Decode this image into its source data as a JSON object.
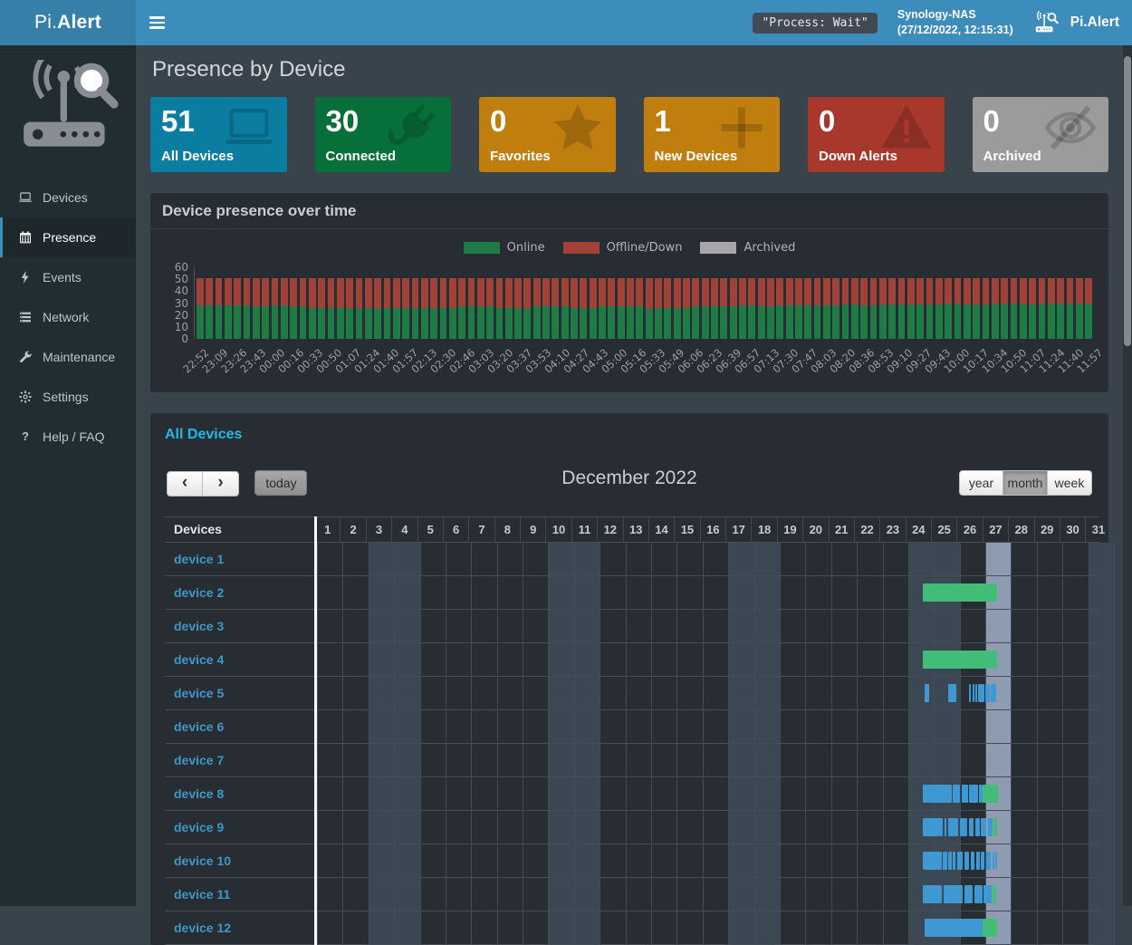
{
  "header": {
    "brand_prefix": "Pi.",
    "brand_suffix": "Alert",
    "process_badge": "\"Process: Wait\"",
    "host_name": "Synology-NAS",
    "host_time": "(27/12/2022, 12:15:31)",
    "app_name": "Pi.Alert"
  },
  "sidebar": {
    "items": [
      {
        "label": "Devices",
        "icon": "laptop-icon",
        "active": false
      },
      {
        "label": "Presence",
        "icon": "calendar-icon",
        "active": true
      },
      {
        "label": "Events",
        "icon": "bolt-icon",
        "active": false
      },
      {
        "label": "Network",
        "icon": "network-icon",
        "active": false
      },
      {
        "label": "Maintenance",
        "icon": "wrench-icon",
        "active": false
      },
      {
        "label": "Settings",
        "icon": "gear-icon",
        "active": false
      },
      {
        "label": "Help / FAQ",
        "icon": "question-icon",
        "active": false
      }
    ]
  },
  "page": {
    "title": "Presence by Device"
  },
  "info_boxes": [
    {
      "value": "51",
      "label": "All Devices",
      "color": "#0b7da0",
      "icon": "laptop-icon"
    },
    {
      "value": "30",
      "label": "Connected",
      "color": "#07703a",
      "icon": "plug-icon"
    },
    {
      "value": "0",
      "label": "Favorites",
      "color": "#c07e0f",
      "icon": "star-icon"
    },
    {
      "value": "1",
      "label": "New Devices",
      "color": "#c07e0f",
      "icon": "plus-icon"
    },
    {
      "value": "0",
      "label": "Down Alerts",
      "color": "#a8382c",
      "icon": "warning-icon"
    },
    {
      "value": "0",
      "label": "Archived",
      "color": "#9b9b9b",
      "icon": "eye-slash-icon"
    }
  ],
  "chart_panel": {
    "title": "Device presence over time"
  },
  "chart_data": {
    "type": "bar",
    "stacked": true,
    "title": "Device presence over time",
    "ylim": [
      0,
      60
    ],
    "y_ticks": [
      60,
      50,
      40,
      30,
      20,
      10,
      0
    ],
    "label_every_n_bars": 2,
    "legend_position": "top-center",
    "x_labels": [
      "22:52",
      "23:09",
      "23:26",
      "23:43",
      "00:00",
      "00:16",
      "00:33",
      "00:50",
      "01:07",
      "01:24",
      "01:40",
      "01:57",
      "02:13",
      "02:30",
      "02:46",
      "03:03",
      "03:20",
      "03:37",
      "03:53",
      "04:10",
      "04:27",
      "04:43",
      "05:00",
      "05:16",
      "05:33",
      "05:49",
      "06:06",
      "06:23",
      "06:39",
      "06:57",
      "07:13",
      "07:30",
      "07:47",
      "08:03",
      "08:20",
      "08:36",
      "08:53",
      "09:10",
      "09:27",
      "09:43",
      "10:00",
      "10:17",
      "10:34",
      "10:50",
      "11:07",
      "11:24",
      "11:40",
      "11:57"
    ],
    "series": [
      {
        "name": "Online",
        "color": "#1e7b46",
        "values": [
          28,
          28,
          28,
          28,
          28,
          28,
          27,
          27,
          28,
          28,
          27,
          27,
          26,
          26,
          26,
          26,
          26,
          26,
          26,
          26,
          26,
          26,
          26,
          26,
          26,
          26,
          26,
          26,
          27,
          27,
          27,
          27,
          26,
          26,
          26,
          26,
          27,
          27,
          27,
          27,
          26,
          26,
          26,
          27,
          27,
          27,
          27,
          27,
          25,
          26,
          26,
          26,
          26,
          27,
          27,
          27,
          27,
          27,
          28,
          28,
          27,
          27,
          28,
          28,
          28,
          28,
          28,
          28,
          28,
          29,
          29,
          28,
          28,
          29,
          29,
          29,
          29,
          29,
          29,
          29,
          30,
          30,
          29,
          29,
          29,
          30,
          30,
          30,
          30,
          29,
          30,
          30,
          30,
          30,
          30,
          30
        ]
      },
      {
        "name": "Offline/Down",
        "color": "#a04238",
        "values": [
          23,
          23,
          23,
          23,
          23,
          23,
          24,
          24,
          23,
          23,
          24,
          24,
          25,
          25,
          25,
          25,
          25,
          25,
          25,
          25,
          25,
          25,
          25,
          25,
          25,
          25,
          25,
          25,
          24,
          24,
          24,
          24,
          25,
          25,
          25,
          25,
          24,
          24,
          24,
          24,
          25,
          25,
          25,
          24,
          24,
          24,
          24,
          24,
          26,
          25,
          25,
          25,
          25,
          24,
          24,
          24,
          24,
          24,
          23,
          23,
          24,
          24,
          23,
          23,
          23,
          23,
          23,
          23,
          23,
          22,
          22,
          23,
          23,
          22,
          22,
          22,
          22,
          22,
          22,
          22,
          21,
          21,
          22,
          22,
          22,
          21,
          21,
          21,
          21,
          22,
          21,
          21,
          21,
          21,
          21,
          21
        ]
      },
      {
        "name": "Archived",
        "color": "#a7a7a7",
        "constant_value": 0
      }
    ]
  },
  "calendar": {
    "section_title": "All Devices",
    "toolbar": {
      "prev": "‹",
      "next": "›",
      "today": "today",
      "title": "December 2022",
      "views": [
        {
          "label": "year",
          "active": false
        },
        {
          "label": "month",
          "active": true
        },
        {
          "label": "week",
          "active": false
        }
      ]
    },
    "table": {
      "devices_header": "Devices",
      "days": [
        1,
        2,
        3,
        4,
        5,
        6,
        7,
        8,
        9,
        10,
        11,
        12,
        13,
        14,
        15,
        16,
        17,
        18,
        19,
        20,
        21,
        22,
        23,
        24,
        25,
        26,
        27,
        28,
        29,
        30,
        31
      ],
      "weekend_days": [
        3,
        4,
        10,
        11,
        17,
        18,
        24,
        25,
        31
      ],
      "today_day": 27,
      "colors": {
        "weekend_bg": "#3c4754",
        "today_bg": "#8e9bb1",
        "present_blue": "#3e99d2",
        "present_now_green": "#41bd78"
      }
    },
    "devices": [
      {
        "name": "device 1",
        "segments": []
      },
      {
        "name": "device 2",
        "segments": [
          {
            "c": "green",
            "f": 24.55,
            "t": 27.45
          }
        ]
      },
      {
        "name": "device 3",
        "segments": []
      },
      {
        "name": "device 4",
        "segments": [
          {
            "c": "green",
            "f": 24.55,
            "t": 27.45
          }
        ]
      },
      {
        "name": "device 5",
        "segments": [
          {
            "c": "blue",
            "f": 24.62,
            "t": 24.82
          },
          {
            "c": "blue",
            "f": 25.55,
            "t": 25.88
          },
          {
            "c": "blue",
            "f": 26.35,
            "t": 26.45
          },
          {
            "c": "blue",
            "f": 26.5,
            "t": 26.58
          },
          {
            "c": "blue",
            "f": 26.62,
            "t": 26.68
          },
          {
            "c": "blue",
            "f": 26.72,
            "t": 26.95
          },
          {
            "c": "blue",
            "f": 27.0,
            "t": 27.18
          },
          {
            "c": "blue",
            "f": 27.22,
            "t": 27.42
          }
        ]
      },
      {
        "name": "device 6",
        "segments": []
      },
      {
        "name": "device 7",
        "segments": []
      },
      {
        "name": "device 8",
        "segments": [
          {
            "c": "blue",
            "f": 24.55,
            "t": 25.68
          },
          {
            "c": "blue",
            "f": 25.73,
            "t": 26.02
          },
          {
            "c": "blue",
            "f": 26.07,
            "t": 26.32
          },
          {
            "c": "blue",
            "f": 26.37,
            "t": 26.7
          },
          {
            "c": "blue",
            "f": 26.74,
            "t": 26.88
          },
          {
            "c": "green",
            "f": 26.88,
            "t": 27.48
          }
        ]
      },
      {
        "name": "device 9",
        "segments": [
          {
            "c": "blue",
            "f": 24.55,
            "t": 25.35
          },
          {
            "c": "blue",
            "f": 25.4,
            "t": 25.5
          },
          {
            "c": "blue",
            "f": 25.55,
            "t": 25.95
          },
          {
            "c": "blue",
            "f": 26.0,
            "t": 26.3
          },
          {
            "c": "blue",
            "f": 26.35,
            "t": 26.55
          },
          {
            "c": "blue",
            "f": 26.6,
            "t": 26.78
          },
          {
            "c": "blue",
            "f": 26.82,
            "t": 27.05
          },
          {
            "c": "blue",
            "f": 27.1,
            "t": 27.28
          },
          {
            "c": "green",
            "f": 27.3,
            "t": 27.44
          }
        ]
      },
      {
        "name": "device 10",
        "segments": [
          {
            "c": "blue",
            "f": 24.55,
            "t": 25.3
          },
          {
            "c": "blue",
            "f": 25.35,
            "t": 25.52
          },
          {
            "c": "blue",
            "f": 25.57,
            "t": 25.68
          },
          {
            "c": "blue",
            "f": 25.73,
            "t": 25.85
          },
          {
            "c": "blue",
            "f": 25.9,
            "t": 26.12
          },
          {
            "c": "blue",
            "f": 26.17,
            "t": 26.38
          },
          {
            "c": "blue",
            "f": 26.43,
            "t": 26.58
          },
          {
            "c": "blue",
            "f": 26.63,
            "t": 26.78
          },
          {
            "c": "blue",
            "f": 26.83,
            "t": 26.98
          },
          {
            "c": "blue",
            "f": 27.03,
            "t": 27.22
          },
          {
            "c": "blue",
            "f": 27.27,
            "t": 27.33
          },
          {
            "c": "blue",
            "f": 27.38,
            "t": 27.46
          }
        ]
      },
      {
        "name": "device 11",
        "segments": [
          {
            "c": "blue",
            "f": 24.55,
            "t": 25.32
          },
          {
            "c": "blue",
            "f": 25.37,
            "t": 26.12
          },
          {
            "c": "blue",
            "f": 26.17,
            "t": 26.52
          },
          {
            "c": "blue",
            "f": 26.57,
            "t": 26.88
          },
          {
            "c": "blue",
            "f": 26.93,
            "t": 27.25
          },
          {
            "c": "green",
            "f": 27.28,
            "t": 27.42
          }
        ]
      },
      {
        "name": "device 12",
        "segments": [
          {
            "c": "blue",
            "f": 24.62,
            "t": 26.88
          },
          {
            "c": "green",
            "f": 26.9,
            "t": 27.44
          }
        ]
      }
    ]
  }
}
